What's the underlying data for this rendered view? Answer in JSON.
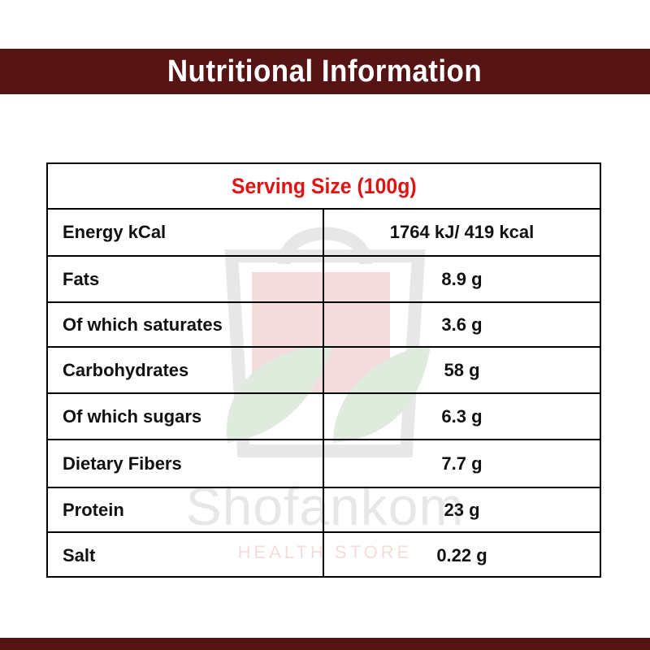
{
  "header": {
    "title": "Nutritional Information"
  },
  "table": {
    "serving_size": "Serving Size (100g)",
    "rows": [
      {
        "label": "Energy kCal",
        "value": "1764 kJ/ 419 kcal"
      },
      {
        "label": "Fats",
        "value": "8.9 g"
      },
      {
        "label": "Of which saturates",
        "value": "3.6 g"
      },
      {
        "label": "Carbohydrates",
        "value": "58 g"
      },
      {
        "label": "Of which sugars",
        "value": "6.3 g"
      },
      {
        "label": "Dietary Fibers",
        "value": "7.7 g"
      },
      {
        "label": "Protein",
        "value": "23 g"
      },
      {
        "label": "Salt",
        "value": "0.22 g"
      }
    ]
  },
  "watermark": {
    "brand": "Shofankom",
    "subtitle": "HEALTH STORE",
    "icon": "shopping-bag-leaf-icon"
  },
  "colors": {
    "band": "#561414",
    "serving_text": "#e11414",
    "text": "#111111",
    "border": "#000000"
  }
}
